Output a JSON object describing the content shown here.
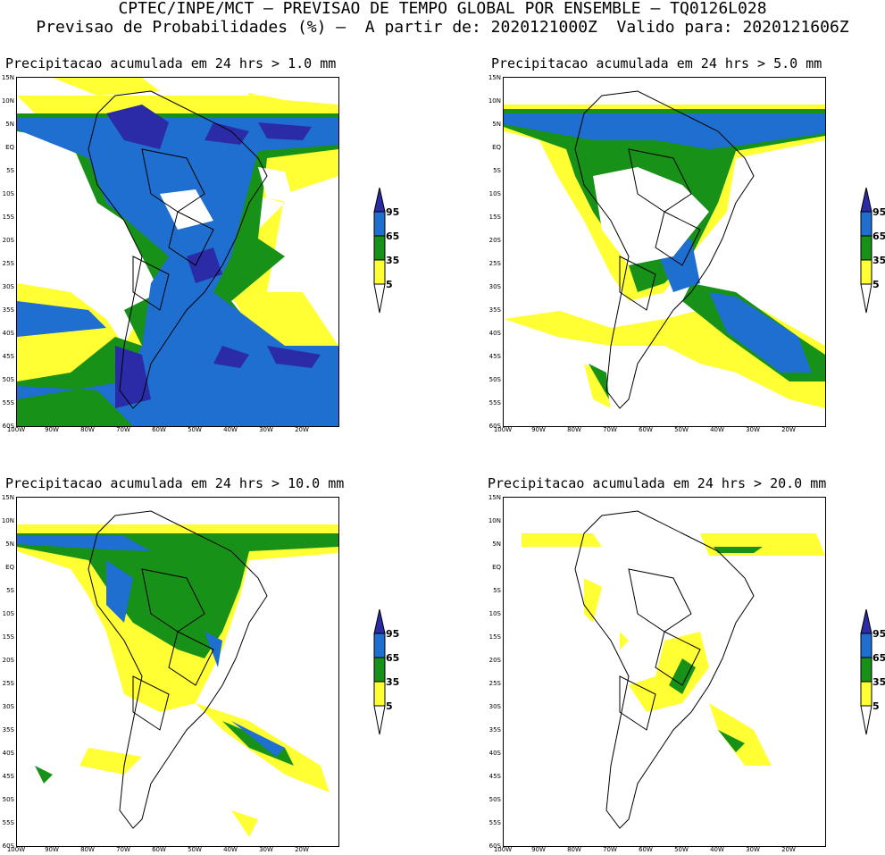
{
  "header": {
    "line1": "CPTEC/INPE/MCT — PREVISAO DE TEMPO GLOBAL POR ENSEMBLE — TQ0126L028",
    "line2": "Previsao de Probabilidades (%) —  A partir de: 2020121000Z  Valido para: 2020121606Z"
  },
  "axes": {
    "lat_labels": [
      "15N",
      "10N",
      "5N",
      "EQ",
      "5S",
      "10S",
      "15S",
      "20S",
      "25S",
      "30S",
      "35S",
      "40S",
      "45S",
      "50S",
      "55S",
      "60S"
    ],
    "lon_labels": [
      "100W",
      "90W",
      "80W",
      "70W",
      "60W",
      "50W",
      "40W",
      "30W",
      "20W"
    ]
  },
  "legend": {
    "levels": [
      "95",
      "65",
      "35",
      "5"
    ],
    "colors": {
      "95": "#2b2ba8",
      "65": "#1e6fd0",
      "35": "#179117",
      "5": "#ffff33"
    }
  },
  "panels": [
    {
      "title": "Precipitacao acumulada em 24 hrs > 1.0 mm",
      "threshold_mm": 1.0
    },
    {
      "title": "Precipitacao acumulada em 24 hrs > 5.0 mm",
      "threshold_mm": 5.0
    },
    {
      "title": "Precipitacao acumulada em 24 hrs > 10.0 mm",
      "threshold_mm": 10.0
    },
    {
      "title": "Precipitacao acumulada em 24 hrs > 20.0 mm",
      "threshold_mm": 20.0
    }
  ]
}
